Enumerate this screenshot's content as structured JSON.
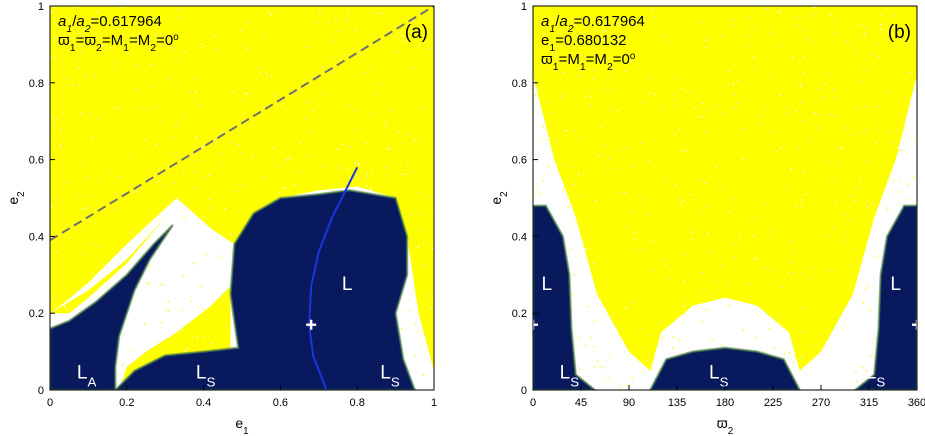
{
  "figure": {
    "palette": {
      "background": "#ffffff",
      "chaotic": "#ffff00",
      "stable_dark": "#061048",
      "stable_mid": "#0d2a88",
      "edge_green": "#2e8a5a",
      "edge_orange": "#e08020",
      "curve": "#1a35e0",
      "dashed_line": "#707070",
      "marker": "#ffffff",
      "axis": "#000000"
    }
  },
  "chart_data": [
    {
      "type": "heatmap",
      "panel_label": "(a)",
      "info_lines": [
        {
          "parts": [
            {
              "t": "a",
              "sub": "1",
              "i": true
            },
            {
              "t": "/"
            },
            {
              "t": "a",
              "sub": "2",
              "i": true
            },
            {
              "t": "=0.617964"
            }
          ]
        },
        {
          "parts": [
            {
              "t": "ϖ",
              "sub": "1"
            },
            {
              "t": "=ϖ",
              "sub": "2"
            },
            {
              "t": "=M",
              "sub": "1"
            },
            {
              "t": "=M",
              "sub": "2"
            },
            {
              "t": "=0",
              "sup": "o"
            }
          ]
        }
      ],
      "xlabel": {
        "t": "e",
        "sub": "1"
      },
      "ylabel": {
        "t": "e",
        "sub": "2"
      },
      "xlim": [
        0,
        1
      ],
      "ylim": [
        0,
        1
      ],
      "xticks": [
        "0",
        "0.2",
        "0.4",
        "0.6",
        "0.8",
        "1"
      ],
      "xtick_values": [
        0,
        0.2,
        0.4,
        0.6,
        0.8,
        1
      ],
      "yticks": [
        "0",
        "0.2",
        "0.4",
        "0.6",
        "0.8",
        "1"
      ],
      "ytick_values": [
        0,
        0.2,
        0.4,
        0.6,
        0.8,
        1
      ],
      "region_labels": [
        {
          "t": "L",
          "sub": "A",
          "x": 0.07,
          "y": 0.02
        },
        {
          "t": "L",
          "sub": "S",
          "x": 0.38,
          "y": 0.02
        },
        {
          "t": "L",
          "sub": "S",
          "x": 0.86,
          "y": 0.02
        },
        {
          "t": "L",
          "sub": "",
          "x": 0.76,
          "y": 0.25
        }
      ],
      "marker": {
        "x": 0.680132,
        "y": 0.17
      },
      "dashed_lines": [
        [
          [
            0,
            0.39
          ],
          [
            1,
            1.0
          ]
        ]
      ],
      "curve": [
        [
          0.72,
          0.0
        ],
        [
          0.685,
          0.09
        ],
        [
          0.675,
          0.17
        ],
        [
          0.68,
          0.27
        ],
        [
          0.7,
          0.36
        ],
        [
          0.735,
          0.45
        ],
        [
          0.77,
          0.52
        ],
        [
          0.8,
          0.58
        ]
      ],
      "stable_regions": [
        [
          [
            0.17,
            0.0
          ],
          [
            0.22,
            0.05
          ],
          [
            0.3,
            0.09
          ],
          [
            0.4,
            0.1
          ],
          [
            0.49,
            0.11
          ],
          [
            0.47,
            0.25
          ],
          [
            0.48,
            0.38
          ],
          [
            0.53,
            0.46
          ],
          [
            0.6,
            0.5
          ],
          [
            0.7,
            0.51
          ],
          [
            0.78,
            0.52
          ],
          [
            0.9,
            0.5
          ],
          [
            0.93,
            0.4
          ],
          [
            0.93,
            0.3
          ],
          [
            0.9,
            0.2
          ],
          [
            0.92,
            0.08
          ],
          [
            0.95,
            0.0
          ]
        ],
        [
          [
            0.0,
            0.0
          ],
          [
            0.0,
            0.16
          ],
          [
            0.05,
            0.18
          ],
          [
            0.12,
            0.23
          ],
          [
            0.2,
            0.3
          ],
          [
            0.27,
            0.38
          ],
          [
            0.32,
            0.43
          ],
          [
            0.26,
            0.34
          ],
          [
            0.22,
            0.26
          ],
          [
            0.18,
            0.14
          ],
          [
            0.17,
            0.06
          ],
          [
            0.17,
            0.0
          ]
        ]
      ],
      "chaotic_regions": [
        [
          [
            0.0,
            0.37
          ],
          [
            0.0,
            1.0
          ],
          [
            1.0,
            1.0
          ],
          [
            1.0,
            0.05
          ],
          [
            0.96,
            0.2
          ],
          [
            0.93,
            0.4
          ],
          [
            0.9,
            0.5
          ],
          [
            0.8,
            0.53
          ],
          [
            0.7,
            0.52
          ],
          [
            0.6,
            0.5
          ],
          [
            0.53,
            0.46
          ],
          [
            0.48,
            0.38
          ],
          [
            0.42,
            0.42
          ],
          [
            0.33,
            0.5
          ],
          [
            0.2,
            0.38
          ],
          [
            0.1,
            0.28
          ],
          [
            0.04,
            0.23
          ],
          [
            0.0,
            0.2
          ]
        ],
        [
          [
            0.0,
            0.2
          ],
          [
            0.1,
            0.26
          ],
          [
            0.2,
            0.34
          ],
          [
            0.3,
            0.45
          ],
          [
            0.2,
            0.33
          ],
          [
            0.1,
            0.24
          ],
          [
            0.05,
            0.2
          ]
        ],
        [
          [
            0.18,
            0.0
          ],
          [
            0.2,
            0.06
          ],
          [
            0.25,
            0.1
          ],
          [
            0.33,
            0.15
          ],
          [
            0.42,
            0.22
          ],
          [
            0.47,
            0.27
          ],
          [
            0.47,
            0.11
          ],
          [
            0.4,
            0.09
          ],
          [
            0.3,
            0.08
          ],
          [
            0.22,
            0.04
          ],
          [
            0.2,
            0.0
          ]
        ]
      ]
    },
    {
      "type": "heatmap",
      "panel_label": "(b)",
      "info_lines": [
        {
          "parts": [
            {
              "t": "a",
              "sub": "1",
              "i": true
            },
            {
              "t": "/"
            },
            {
              "t": "a",
              "sub": "2",
              "i": true
            },
            {
              "t": "=0.617964"
            }
          ]
        },
        {
          "parts": [
            {
              "t": "e",
              "sub": "1"
            },
            {
              "t": "=0.680132"
            }
          ]
        },
        {
          "parts": [
            {
              "t": "ϖ",
              "sub": "1"
            },
            {
              "t": "=M",
              "sub": "1"
            },
            {
              "t": "=M",
              "sub": "2"
            },
            {
              "t": "=0",
              "sup": "o"
            }
          ]
        }
      ],
      "xlabel": {
        "t": "ϖ",
        "sub": "2"
      },
      "ylabel": {
        "t": "e",
        "sub": "2"
      },
      "xlim": [
        0,
        360
      ],
      "ylim": [
        0,
        1
      ],
      "xticks": [
        "0",
        "45",
        "90",
        "135",
        "180",
        "225",
        "270",
        "315",
        "360"
      ],
      "xtick_values": [
        0,
        45,
        90,
        135,
        180,
        225,
        270,
        315,
        360
      ],
      "yticks": [
        "0",
        "0.2",
        "0.4",
        "0.6",
        "0.8",
        "1"
      ],
      "ytick_values": [
        0,
        0.2,
        0.4,
        0.6,
        0.8,
        1
      ],
      "region_labels": [
        {
          "t": "L",
          "sub": "",
          "x": 8,
          "y": 0.25
        },
        {
          "t": "L",
          "sub": "S",
          "x": 25,
          "y": 0.02
        },
        {
          "t": "L",
          "sub": "S",
          "x": 165,
          "y": 0.02
        },
        {
          "t": "L",
          "sub": "S",
          "x": 312,
          "y": 0.02
        },
        {
          "t": "L",
          "sub": "",
          "x": 335,
          "y": 0.25
        }
      ],
      "marker_points": [
        {
          "x": 0,
          "y": 0.17
        },
        {
          "x": 360,
          "y": 0.17
        }
      ],
      "stable_regions": [
        [
          [
            0,
            0.0
          ],
          [
            0,
            0.48
          ],
          [
            12,
            0.48
          ],
          [
            28,
            0.4
          ],
          [
            34,
            0.3
          ],
          [
            36,
            0.16
          ],
          [
            40,
            0.04
          ],
          [
            58,
            0.0
          ]
        ],
        [
          [
            360,
            0.0
          ],
          [
            360,
            0.48
          ],
          [
            348,
            0.48
          ],
          [
            332,
            0.4
          ],
          [
            326,
            0.3
          ],
          [
            324,
            0.16
          ],
          [
            320,
            0.04
          ],
          [
            302,
            0.0
          ]
        ],
        [
          [
            110,
            0.0
          ],
          [
            125,
            0.08
          ],
          [
            150,
            0.1
          ],
          [
            180,
            0.11
          ],
          [
            210,
            0.1
          ],
          [
            235,
            0.08
          ],
          [
            250,
            0.0
          ]
        ]
      ],
      "chaotic_regions": [
        [
          [
            0,
            0.82
          ],
          [
            0,
            1.0
          ],
          [
            360,
            1.0
          ],
          [
            360,
            0.82
          ],
          [
            340,
            0.6
          ],
          [
            320,
            0.45
          ],
          [
            300,
            0.25
          ],
          [
            270,
            0.1
          ],
          [
            250,
            0.05
          ],
          [
            240,
            0.15
          ],
          [
            210,
            0.22
          ],
          [
            180,
            0.24
          ],
          [
            150,
            0.22
          ],
          [
            120,
            0.15
          ],
          [
            110,
            0.05
          ],
          [
            90,
            0.1
          ],
          [
            60,
            0.25
          ],
          [
            40,
            0.45
          ],
          [
            20,
            0.6
          ]
        ]
      ]
    }
  ]
}
